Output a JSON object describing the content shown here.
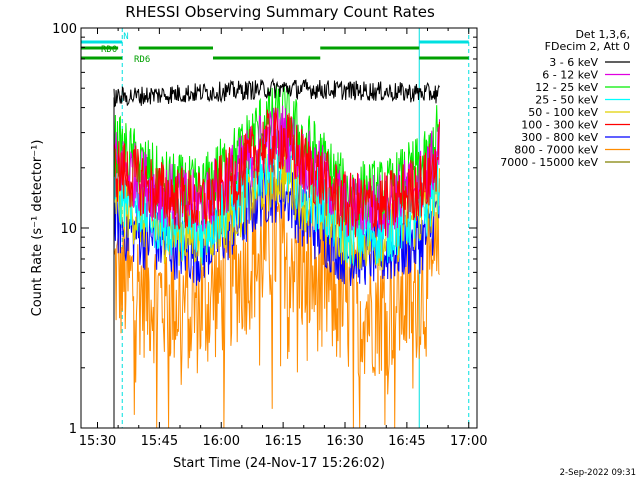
{
  "chart_data": {
    "type": "line",
    "title": "RHESSI Observing Summary Count Rates",
    "xlabel": "Start Time (24-Nov-17 15:26:02)",
    "ylabel": "Count Rate (s⁻¹ detector⁻¹)",
    "y_scale": "log",
    "xlim": [
      "15:26",
      "17:02"
    ],
    "ylim": [
      1,
      100
    ],
    "x_ticks": [
      "15:30",
      "15:45",
      "16:00",
      "16:15",
      "16:30",
      "16:45",
      "17:00"
    ],
    "y_ticks": [
      "1",
      "10",
      "100"
    ],
    "grid": false,
    "legend_position": "right",
    "legend_header": [
      "Det 1,3,6,",
      "FDecim 2, Att 0"
    ],
    "data_window": [
      "15:34",
      "16:53"
    ],
    "series": [
      {
        "name": "3 - 6 keV",
        "color": "#000000",
        "times": [
          "15:34",
          "16:15",
          "16:53"
        ],
        "values": [
          45,
          50,
          47
        ]
      },
      {
        "name": "6 - 12 keV",
        "color": "#e000e0",
        "times": [
          "15:34",
          "15:36",
          "15:45",
          "15:55",
          "16:05",
          "16:10",
          "16:15",
          "16:20",
          "16:30",
          "16:40",
          "16:50",
          "16:53"
        ],
        "values": [
          22,
          20,
          15,
          13,
          20,
          27,
          29,
          22,
          13,
          13,
          18,
          26
        ]
      },
      {
        "name": "12 - 25 keV",
        "color": "#00ee00",
        "times": [
          "15:34",
          "15:36",
          "15:45",
          "15:55",
          "16:05",
          "16:10",
          "16:15",
          "16:20",
          "16:30",
          "16:40",
          "16:50",
          "16:53"
        ],
        "values": [
          26,
          24,
          17,
          15,
          24,
          33,
          37,
          27,
          15,
          15,
          21,
          31
        ]
      },
      {
        "name": "25 - 50 keV",
        "color": "#00ffff",
        "times": [
          "15:34",
          "15:36",
          "15:45",
          "15:55",
          "16:05",
          "16:10",
          "16:15",
          "16:20",
          "16:30",
          "16:40",
          "16:50",
          "16:53"
        ],
        "values": [
          16,
          15,
          11,
          9.5,
          15,
          21,
          23,
          16,
          9.5,
          9.5,
          13,
          18
        ]
      },
      {
        "name": "50 - 100 keV",
        "color": "#e0d000",
        "times": [
          "15:34",
          "15:36",
          "15:45",
          "15:55",
          "16:05",
          "16:10",
          "16:15",
          "16:20",
          "16:30",
          "16:40",
          "16:50",
          "16:53"
        ],
        "values": [
          14,
          13,
          10,
          9,
          13,
          17,
          19,
          14,
          9,
          9,
          12,
          15
        ]
      },
      {
        "name": "100 - 300 keV",
        "color": "#ff0000",
        "times": [
          "15:34",
          "15:36",
          "15:45",
          "15:55",
          "16:05",
          "16:10",
          "16:15",
          "16:20",
          "16:30",
          "16:40",
          "16:50",
          "16:53"
        ],
        "values": [
          20,
          19,
          15,
          13,
          19,
          26,
          28,
          21,
          13,
          13,
          17,
          24
        ]
      },
      {
        "name": "300 - 800 keV",
        "color": "#0000ff",
        "times": [
          "15:34",
          "15:36",
          "15:45",
          "15:55",
          "16:05",
          "16:10",
          "16:15",
          "16:20",
          "16:30",
          "16:40",
          "16:50",
          "16:53"
        ],
        "values": [
          11,
          10,
          8.5,
          7.5,
          11,
          15,
          16,
          11,
          7.5,
          7.5,
          9,
          13
        ]
      },
      {
        "name": "800 - 7000 keV",
        "color": "#ff8c00",
        "times": [
          "15:34",
          "15:36",
          "15:45",
          "15:55",
          "16:05",
          "16:10",
          "16:15",
          "16:20",
          "16:30",
          "16:40",
          "16:50",
          "16:53"
        ],
        "values": [
          6,
          5.5,
          4.5,
          4,
          6,
          8,
          9,
          6,
          4,
          4,
          5,
          7
        ]
      },
      {
        "name": "7000 - 15000 keV",
        "color": "#808000",
        "times": [],
        "values": []
      }
    ],
    "annotations": [
      {
        "label": "N",
        "color": "#00e0e0",
        "intervals": [
          [
            "15:26",
            "15:36"
          ],
          [
            "16:48",
            "17:00"
          ]
        ]
      },
      {
        "label": "RD0",
        "color": "#00a000",
        "intervals": [
          [
            "15:26",
            "15:35"
          ],
          [
            "15:40",
            "15:58"
          ],
          [
            "16:24",
            "16:48"
          ]
        ]
      },
      {
        "label": "RD6",
        "color": "#00a000",
        "intervals": [
          [
            "15:26",
            "15:36"
          ],
          [
            "15:58",
            "16:24"
          ],
          [
            "16:48",
            "17:00"
          ]
        ]
      }
    ],
    "vertical_lines": [
      {
        "time": "15:26",
        "style": "solid",
        "color": "#00e0e0"
      },
      {
        "time": "15:36",
        "style": "dashed",
        "color": "#00e0e0"
      },
      {
        "time": "16:48",
        "style": "solid",
        "color": "#00e0e0"
      },
      {
        "time": "17:00",
        "style": "dashed",
        "color": "#00e0e0"
      }
    ],
    "timestamp": "2-Sep-2022 09:31"
  }
}
